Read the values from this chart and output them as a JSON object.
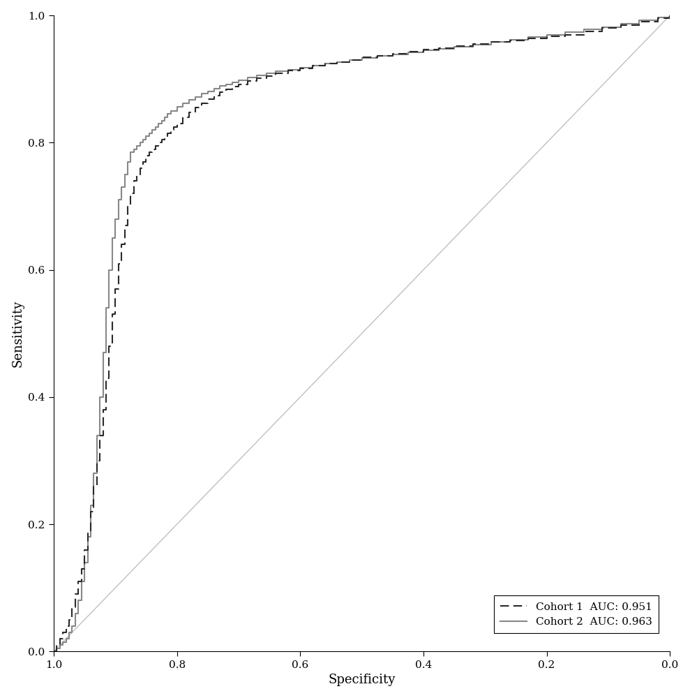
{
  "title": "",
  "xlabel": "Specificity",
  "ylabel": "Sensitivity",
  "xlim": [
    1.0,
    0.0
  ],
  "ylim": [
    0.0,
    1.0
  ],
  "xticks": [
    1.0,
    0.8,
    0.6,
    0.4,
    0.2,
    0.0
  ],
  "yticks": [
    0.0,
    0.2,
    0.4,
    0.6,
    0.8,
    1.0
  ],
  "diagonal_color": "#c0c0c0",
  "cohort1_color": "#2a2a2a",
  "cohort2_color": "#888888",
  "legend_label1": "Cohort 1  AUC: 0.951",
  "legend_label2": "Cohort 2  AUC: 0.963",
  "background_color": "#ffffff",
  "cohort1_specificity": [
    1.0,
    0.995,
    0.99,
    0.985,
    0.98,
    0.975,
    0.97,
    0.965,
    0.96,
    0.955,
    0.95,
    0.945,
    0.94,
    0.935,
    0.93,
    0.925,
    0.92,
    0.915,
    0.91,
    0.905,
    0.9,
    0.895,
    0.89,
    0.885,
    0.88,
    0.875,
    0.87,
    0.865,
    0.86,
    0.855,
    0.85,
    0.845,
    0.84,
    0.835,
    0.83,
    0.825,
    0.82,
    0.815,
    0.81,
    0.805,
    0.8,
    0.79,
    0.78,
    0.77,
    0.76,
    0.75,
    0.74,
    0.73,
    0.72,
    0.71,
    0.7,
    0.685,
    0.67,
    0.655,
    0.64,
    0.62,
    0.6,
    0.58,
    0.56,
    0.54,
    0.52,
    0.5,
    0.475,
    0.45,
    0.425,
    0.4,
    0.375,
    0.35,
    0.32,
    0.29,
    0.26,
    0.23,
    0.2,
    0.17,
    0.14,
    0.11,
    0.08,
    0.05,
    0.02,
    0.0
  ],
  "cohort1_sensitivity": [
    0.0,
    0.01,
    0.02,
    0.03,
    0.04,
    0.05,
    0.07,
    0.09,
    0.11,
    0.13,
    0.16,
    0.19,
    0.22,
    0.26,
    0.3,
    0.34,
    0.38,
    0.43,
    0.48,
    0.53,
    0.57,
    0.61,
    0.64,
    0.67,
    0.7,
    0.72,
    0.74,
    0.75,
    0.76,
    0.77,
    0.78,
    0.785,
    0.79,
    0.795,
    0.8,
    0.805,
    0.81,
    0.815,
    0.82,
    0.825,
    0.83,
    0.84,
    0.848,
    0.855,
    0.862,
    0.868,
    0.874,
    0.879,
    0.884,
    0.888,
    0.892,
    0.897,
    0.901,
    0.905,
    0.909,
    0.913,
    0.917,
    0.921,
    0.924,
    0.927,
    0.93,
    0.934,
    0.937,
    0.94,
    0.943,
    0.946,
    0.949,
    0.952,
    0.955,
    0.958,
    0.961,
    0.964,
    0.967,
    0.97,
    0.975,
    0.98,
    0.985,
    0.99,
    0.996,
    1.0
  ],
  "cohort2_specificity": [
    1.0,
    0.995,
    0.99,
    0.985,
    0.98,
    0.975,
    0.97,
    0.965,
    0.96,
    0.955,
    0.95,
    0.945,
    0.94,
    0.935,
    0.93,
    0.925,
    0.92,
    0.915,
    0.91,
    0.905,
    0.9,
    0.895,
    0.89,
    0.885,
    0.88,
    0.875,
    0.87,
    0.865,
    0.86,
    0.855,
    0.85,
    0.845,
    0.84,
    0.835,
    0.83,
    0.825,
    0.82,
    0.815,
    0.81,
    0.8,
    0.79,
    0.78,
    0.77,
    0.76,
    0.75,
    0.74,
    0.73,
    0.72,
    0.71,
    0.7,
    0.685,
    0.67,
    0.655,
    0.64,
    0.62,
    0.6,
    0.58,
    0.56,
    0.54,
    0.52,
    0.5,
    0.475,
    0.45,
    0.425,
    0.4,
    0.375,
    0.35,
    0.32,
    0.29,
    0.26,
    0.23,
    0.2,
    0.17,
    0.14,
    0.11,
    0.08,
    0.05,
    0.02,
    0.0
  ],
  "cohort2_sensitivity": [
    0.0,
    0.005,
    0.01,
    0.015,
    0.02,
    0.03,
    0.04,
    0.06,
    0.08,
    0.11,
    0.14,
    0.18,
    0.23,
    0.28,
    0.34,
    0.4,
    0.47,
    0.54,
    0.6,
    0.65,
    0.68,
    0.71,
    0.73,
    0.75,
    0.77,
    0.785,
    0.79,
    0.795,
    0.8,
    0.805,
    0.81,
    0.815,
    0.82,
    0.825,
    0.83,
    0.835,
    0.84,
    0.845,
    0.85,
    0.856,
    0.862,
    0.867,
    0.872,
    0.877,
    0.881,
    0.885,
    0.889,
    0.892,
    0.895,
    0.898,
    0.902,
    0.906,
    0.909,
    0.912,
    0.915,
    0.918,
    0.921,
    0.924,
    0.927,
    0.93,
    0.933,
    0.936,
    0.939,
    0.942,
    0.945,
    0.948,
    0.951,
    0.954,
    0.958,
    0.962,
    0.966,
    0.97,
    0.974,
    0.978,
    0.982,
    0.987,
    0.992,
    0.997,
    1.0
  ]
}
